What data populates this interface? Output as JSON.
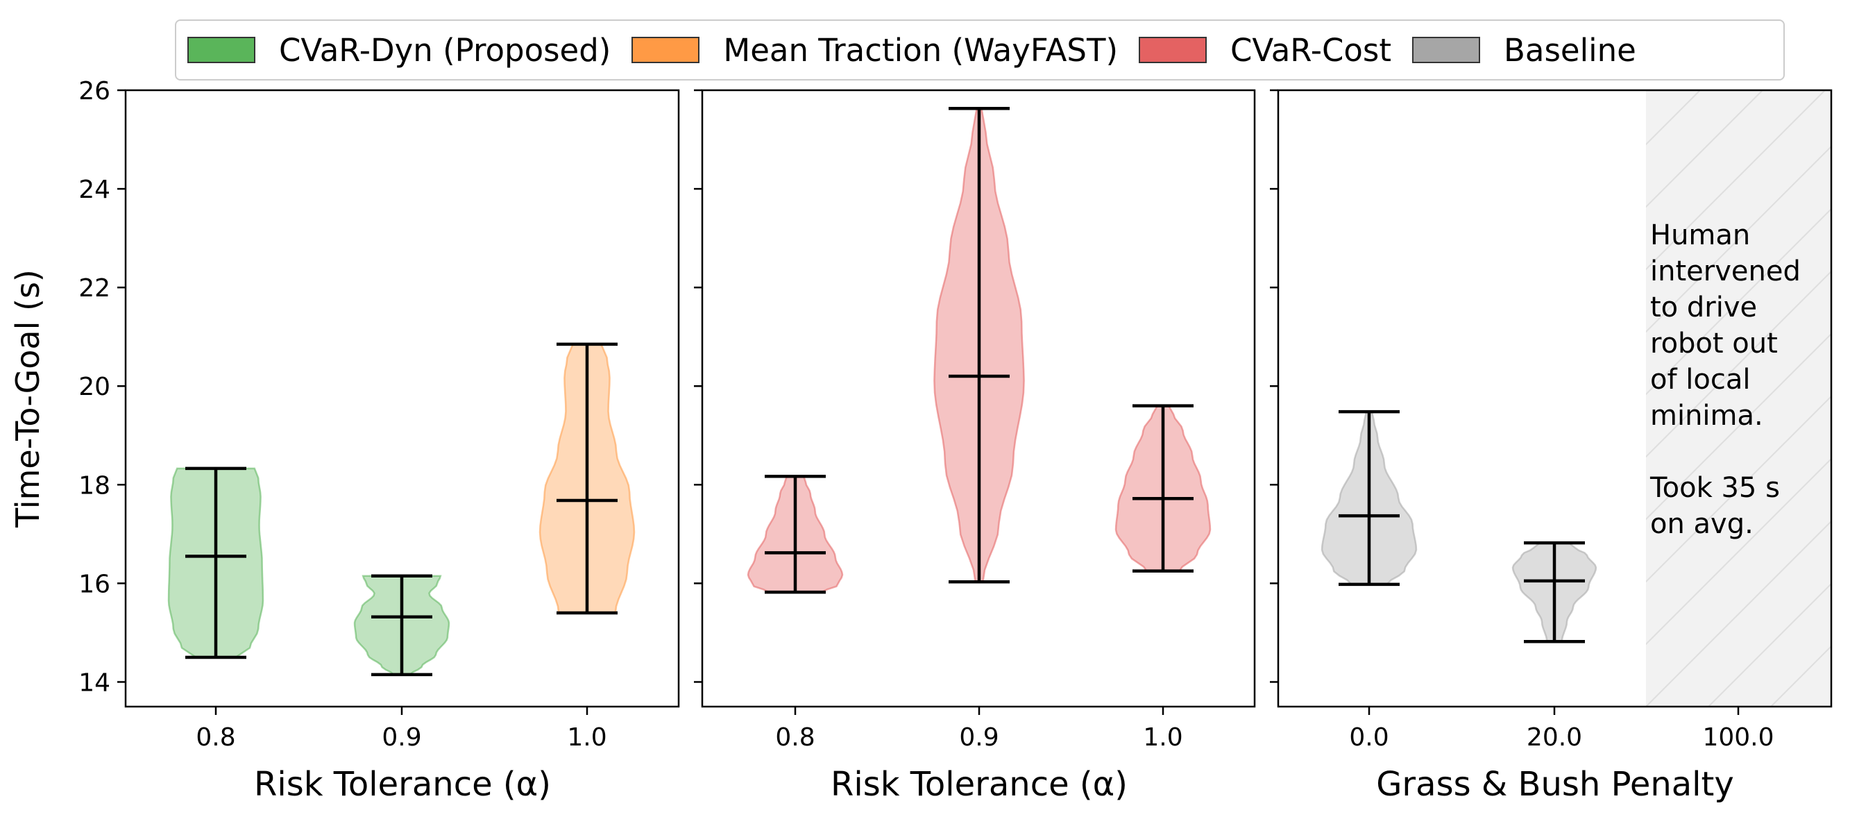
{
  "legend": [
    {
      "label": "CVaR-Dyn (Proposed)",
      "color": "#5ab55a"
    },
    {
      "label": "Mean Traction (WayFAST)",
      "color": "#ff9a45"
    },
    {
      "label": "CVaR-Cost",
      "color": "#e46262"
    },
    {
      "label": "Baseline",
      "color": "#a6a6a6"
    }
  ],
  "chart_data": {
    "type": "violin",
    "ylabel": "Time-To-Goal (s)",
    "ylim": [
      13.5,
      26
    ],
    "yticks": [
      14,
      16,
      18,
      20,
      22,
      24,
      26
    ],
    "panels": [
      {
        "xlabel": "Risk Tolerance (α)",
        "categories": [
          "0.8",
          "0.9",
          "1.0"
        ],
        "violins": [
          {
            "category": "0.8",
            "series": "CVaR-Dyn (Proposed)",
            "color": "#5ab55a",
            "min": 14.5,
            "median": 16.55,
            "max": 18.33
          },
          {
            "category": "0.9",
            "series": "CVaR-Dyn (Proposed)",
            "color": "#5ab55a",
            "min": 14.15,
            "median": 15.32,
            "max": 16.15
          },
          {
            "category": "1.0",
            "series": "Mean Traction (WayFAST)",
            "color": "#ff9a45",
            "min": 15.4,
            "median": 17.68,
            "max": 20.85
          }
        ]
      },
      {
        "xlabel": "Risk Tolerance (α)",
        "categories": [
          "0.8",
          "0.9",
          "1.0"
        ],
        "violins": [
          {
            "category": "0.8",
            "series": "CVaR-Cost",
            "color": "#e46262",
            "min": 15.82,
            "median": 16.62,
            "max": 18.17
          },
          {
            "category": "0.9",
            "series": "CVaR-Cost",
            "color": "#e46262",
            "min": 16.03,
            "median": 20.2,
            "max": 25.63
          },
          {
            "category": "1.0",
            "series": "CVaR-Cost",
            "color": "#e46262",
            "min": 16.25,
            "median": 17.72,
            "max": 19.6
          }
        ]
      },
      {
        "xlabel": "Grass & Bush Penalty",
        "categories": [
          "0.0",
          "20.0",
          "100.0"
        ],
        "violins": [
          {
            "category": "0.0",
            "series": "Baseline",
            "color": "#a6a6a6",
            "min": 15.98,
            "median": 17.37,
            "max": 19.48
          },
          {
            "category": "20.0",
            "series": "Baseline",
            "color": "#a6a6a6",
            "min": 14.82,
            "median": 16.05,
            "max": 16.82
          }
        ],
        "annotation": "Human\nintervened\nto drive\nrobot out\nof local\nminima.\n\nTook 35 s\non avg."
      }
    ]
  }
}
